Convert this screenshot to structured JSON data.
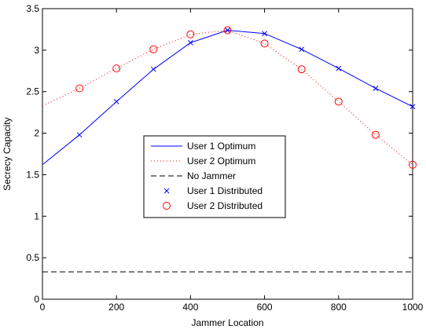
{
  "chart_data": {
    "type": "line",
    "title": "",
    "xlabel": "Jammer Location",
    "ylabel": "Secrecy Capacity",
    "xlim": [
      0,
      1000
    ],
    "ylim": [
      0,
      3.5
    ],
    "x_ticks": [
      0,
      200,
      400,
      600,
      800,
      1000
    ],
    "x_tick_labels": [
      "0",
      "200",
      "400",
      "600",
      "800",
      "1000"
    ],
    "y_ticks": [
      0,
      0.5,
      1,
      1.5,
      2,
      2.5,
      3,
      3.5
    ],
    "y_tick_labels": [
      "0",
      "0.5",
      "1",
      "1.5",
      "2",
      "2.5",
      "3",
      "3.5"
    ],
    "grid": false,
    "legend_position": "center",
    "series": [
      {
        "name": "User 1 Optimum",
        "style": "solid-line",
        "color": "#0000ff",
        "x": [
          0,
          100,
          200,
          300,
          400,
          500,
          600,
          700,
          800,
          900,
          1000
        ],
        "values": [
          1.62,
          1.98,
          2.38,
          2.77,
          3.09,
          3.24,
          3.2,
          3.01,
          2.78,
          2.54,
          2.32
        ]
      },
      {
        "name": "User 2 Optimum",
        "style": "dotted-line",
        "color": "#ff0000",
        "x": [
          0,
          100,
          200,
          300,
          400,
          500,
          600,
          700,
          800,
          900,
          1000
        ],
        "values": [
          2.33,
          2.54,
          2.78,
          3.01,
          3.19,
          3.24,
          3.08,
          2.77,
          2.38,
          1.98,
          1.62
        ]
      },
      {
        "name": "No Jammer",
        "style": "dashed-line",
        "color": "#000000",
        "x": [
          0,
          1000
        ],
        "values": [
          0.33,
          0.33
        ]
      },
      {
        "name": "User 1 Distributed",
        "style": "x-markers",
        "color": "#0000ff",
        "x": [
          100,
          200,
          300,
          400,
          500,
          600,
          700,
          800,
          900,
          1000
        ],
        "values": [
          1.98,
          2.38,
          2.77,
          3.09,
          3.24,
          3.2,
          3.01,
          2.78,
          2.54,
          2.32
        ]
      },
      {
        "name": "User 2 Distributed",
        "style": "circle-markers",
        "color": "#ff0000",
        "x": [
          100,
          200,
          300,
          400,
          500,
          600,
          700,
          800,
          900,
          1000
        ],
        "values": [
          2.54,
          2.78,
          3.01,
          3.19,
          3.24,
          3.08,
          2.77,
          2.38,
          1.98,
          1.62
        ]
      }
    ]
  }
}
